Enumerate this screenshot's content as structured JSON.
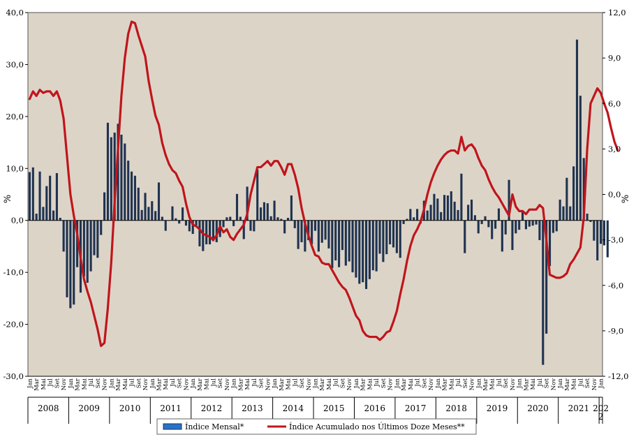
{
  "chart_data": {
    "type": "bar+line",
    "title": "",
    "ylabel_left": "%",
    "ylabel_right": "%",
    "y_left": {
      "min": -30,
      "max": 40,
      "ticks": [
        -30,
        -20,
        -10,
        0,
        10,
        20,
        30,
        40
      ],
      "tick_labels": [
        "-30,0",
        "-20,0",
        "-10,0",
        "0,0",
        "10,0",
        "20,0",
        "30,0",
        "40,0"
      ]
    },
    "y_right": {
      "min": -12,
      "max": 12,
      "ticks": [
        -12,
        -9,
        -6,
        -3,
        0,
        3,
        6,
        9,
        12
      ],
      "tick_labels": [
        "-12,0",
        "-9,0",
        "-6,0",
        "-3,0",
        "0,0",
        "3,0",
        "6,0",
        "9,0",
        "12,0"
      ]
    },
    "grid": false,
    "background": "#ddd4c8",
    "bar_color": "#1f3350",
    "line_color": "#c0151b",
    "month_labels": [
      "Jan",
      "Mar",
      "Mai",
      "Jul",
      "Set",
      "Nov"
    ],
    "years": [
      "2008",
      "2009",
      "2010",
      "2011",
      "2012",
      "2013",
      "2014",
      "2015",
      "2016",
      "2017",
      "2018",
      "2019",
      "2020",
      "2021",
      "202\n2"
    ],
    "months_count": 169,
    "legend": {
      "position": "bottom",
      "bar_label": "Índice Mensal*",
      "line_label": "Índice Acumulado nos Últimos Doze Meses**"
    },
    "series": [
      {
        "name": "Índice Mensal*",
        "kind": "bar",
        "axis": "left",
        "values": [
          9.3,
          10.2,
          1.3,
          9.4,
          2.6,
          6.6,
          8.6,
          1.9,
          9.1,
          0.5,
          -6.0,
          -14.8,
          -16.9,
          -16.2,
          -9.0,
          -13.9,
          -10.8,
          -12.0,
          -9.8,
          -6.7,
          -7.2,
          -2.8,
          5.4,
          18.8,
          16.0,
          16.9,
          18.6,
          16.5,
          14.8,
          11.5,
          9.4,
          8.6,
          6.3,
          2.0,
          5.3,
          2.6,
          3.7,
          1.8,
          7.3,
          0.7,
          -2.0,
          0.0,
          2.7,
          0.4,
          -0.6,
          2.5,
          -1.0,
          -2.1,
          -2.6,
          -1.0,
          -5.0,
          -5.9,
          -4.6,
          -4.6,
          -4.0,
          -4.2,
          -3.2,
          -1.3,
          0.6,
          0.7,
          -1.1,
          5.1,
          0.7,
          -3.6,
          6.5,
          -2.0,
          -2.1,
          9.8,
          2.5,
          3.5,
          3.3,
          0.8,
          3.8,
          0.6,
          0.3,
          -2.5,
          0.5,
          4.8,
          -1.5,
          -5.5,
          -4.2,
          -6.0,
          -3.8,
          -4.6,
          -2.0,
          -6.0,
          -4.3,
          -3.7,
          -5.4,
          -9.2,
          -7.7,
          -9.0,
          -5.7,
          -8.7,
          -7.9,
          -10.0,
          -11.0,
          -12.2,
          -11.9,
          -13.2,
          -11.3,
          -9.6,
          -9.8,
          -6.4,
          -8.0,
          -6.5,
          -4.6,
          -5.2,
          -6.3,
          -7.2,
          -0.7,
          0.3,
          2.2,
          0.6,
          2.2,
          -0.6,
          3.8,
          1.9,
          3.0,
          5.1,
          4.2,
          1.6,
          4.9,
          4.8,
          5.6,
          3.6,
          2.0,
          9.0,
          -6.3,
          3.0,
          4.0,
          1.0,
          -2.5,
          -0.7,
          0.8,
          -1.3,
          -3.6,
          -1.6,
          2.3,
          -6.0,
          -2.7,
          7.8,
          -5.7,
          -2.5,
          -1.8,
          1.6,
          -1.7,
          -1.2,
          -1.0,
          -0.8,
          -3.8,
          -27.8,
          -21.8,
          -8.8,
          -2.4,
          -2.1,
          4.0,
          2.7,
          8.2,
          2.7,
          10.4,
          34.8,
          24.0,
          12.0,
          1.3,
          -0.3,
          -3.9,
          -7.7,
          -4.5,
          -4.8,
          -7.1
        ]
      },
      {
        "name": "Índice Acumulado nos Últimos Doze Meses**",
        "kind": "line",
        "axis": "right",
        "values": [
          6.3,
          6.8,
          6.5,
          6.9,
          6.7,
          6.8,
          6.8,
          6.5,
          6.8,
          6.2,
          5.0,
          2.5,
          0.0,
          -1.4,
          -2.6,
          -4.2,
          -5.6,
          -6.4,
          -7.1,
          -8.0,
          -8.9,
          -10.0,
          -9.8,
          -7.5,
          -4.5,
          -0.5,
          3.0,
          6.5,
          9.0,
          10.6,
          11.4,
          11.3,
          10.5,
          9.8,
          9.1,
          7.5,
          6.3,
          5.2,
          4.6,
          3.4,
          2.6,
          2.0,
          1.6,
          1.4,
          0.9,
          0.5,
          -0.6,
          -1.5,
          -2.0,
          -2.1,
          -2.3,
          -2.6,
          -2.7,
          -2.8,
          -3.0,
          -2.7,
          -2.1,
          -2.5,
          -2.3,
          -2.8,
          -3.0,
          -2.6,
          -2.3,
          -2.0,
          -1.3,
          0.0,
          0.9,
          1.8,
          1.8,
          2.0,
          2.2,
          1.9,
          2.2,
          2.2,
          1.8,
          1.3,
          2.0,
          2.0,
          1.3,
          0.4,
          -0.9,
          -1.9,
          -2.7,
          -3.4,
          -4.0,
          -4.1,
          -4.5,
          -4.6,
          -4.6,
          -5.0,
          -5.4,
          -5.8,
          -6.1,
          -6.3,
          -6.8,
          -7.4,
          -8.0,
          -8.3,
          -9.0,
          -9.3,
          -9.4,
          -9.4,
          -9.4,
          -9.6,
          -9.4,
          -9.1,
          -9.0,
          -8.4,
          -7.7,
          -6.6,
          -5.6,
          -4.4,
          -3.4,
          -2.7,
          -2.3,
          -1.8,
          -1.0,
          0.0,
          0.8,
          1.4,
          1.9,
          2.3,
          2.6,
          2.8,
          2.9,
          2.9,
          2.7,
          3.8,
          2.9,
          3.2,
          3.3,
          3.0,
          2.4,
          1.9,
          1.6,
          1.0,
          0.5,
          0.1,
          -0.2,
          -0.6,
          -1.0,
          -1.4,
          0.0,
          -0.8,
          -1.1,
          -1.1,
          -1.3,
          -1.0,
          -1.0,
          -1.0,
          -0.7,
          -0.9,
          -3.0,
          -5.3,
          -5.4,
          -5.5,
          -5.5,
          -5.4,
          -5.2,
          -4.6,
          -4.3,
          -3.9,
          -3.5,
          -1.5,
          3.0,
          6.0,
          6.5,
          7.0,
          6.7,
          6.0,
          5.4,
          4.4,
          3.5,
          2.9
        ]
      }
    ]
  }
}
